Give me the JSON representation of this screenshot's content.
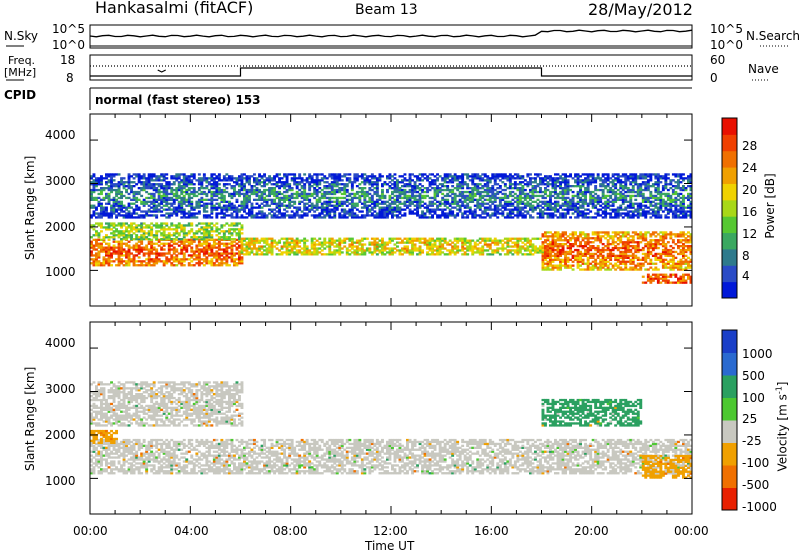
{
  "header": {
    "station": "Hankasalmi (fitACF)",
    "beam": "Beam 13",
    "date": "28/May/2012"
  },
  "panels": {
    "nsky": {
      "label": "N.Sky",
      "right_label": "N.Search",
      "ticks_left": [
        "10^5",
        "10^0"
      ],
      "ticks_right": [
        "10^5",
        "10^0"
      ]
    },
    "freq": {
      "label_1": "Freq.",
      "label_2": "[MHz]",
      "ticks_left": [
        "18",
        "8"
      ],
      "ticks_right": [
        "60",
        "0"
      ],
      "right_label": "Nave"
    },
    "cpid": {
      "label": "CPID",
      "text": "normal (fast stereo) 153"
    }
  },
  "colorbars": {
    "power": {
      "label": "Power [dB]",
      "ticks": [
        "28",
        "24",
        "20",
        "16",
        "12",
        "8",
        "4"
      ],
      "colors": [
        "#0018d8",
        "#2a4bc6",
        "#2e7a8c",
        "#3aa860",
        "#56c832",
        "#a8d818",
        "#f0d200",
        "#f0a000",
        "#f07000",
        "#f04000",
        "#e81000"
      ]
    },
    "velocity": {
      "label": "Velocity [m s",
      "label_sup": "-1",
      "label_end": "]",
      "ticks": [
        "1000",
        "500",
        "100",
        "25",
        "-25",
        "-100",
        "-500",
        "-1000"
      ],
      "colors": [
        "#1a3fc8",
        "#2a6ad0",
        "#2aa060",
        "#4cc830",
        "#c8c8c0",
        "#f0a000",
        "#f07000",
        "#e82000"
      ]
    }
  },
  "axes": {
    "ylabel": "Slant Range [km]",
    "yticks": [
      "4000",
      "3000",
      "2000",
      "1000"
    ],
    "xticks": [
      "00:00",
      "04:00",
      "08:00",
      "12:00",
      "16:00",
      "20:00",
      "00:00"
    ],
    "xlabel": "Time UT"
  },
  "chart_data": [
    {
      "type": "heatmap",
      "title": "Power",
      "xlabel": "",
      "ylabel": "Slant Range [km]",
      "x_range": [
        "00:00",
        "24:00"
      ],
      "ylim": [
        180,
        4600
      ],
      "colorbar_label": "Power [dB]",
      "colorbar_range": [
        0,
        32
      ],
      "bands": [
        {
          "t_start": 0,
          "t_end": 6,
          "range_low": 1100,
          "range_high": 1700,
          "power_db": 28
        },
        {
          "t_start": 0,
          "t_end": 6,
          "range_low": 1700,
          "range_high": 2100,
          "power_db": 16
        },
        {
          "t_start": 6,
          "t_end": 18,
          "range_low": 1350,
          "range_high": 1750,
          "power_db": 20
        },
        {
          "t_start": 18,
          "t_end": 24,
          "range_low": 1000,
          "range_high": 1900,
          "power_db": 28
        },
        {
          "t_start": 0,
          "t_end": 24,
          "range_low": 2200,
          "range_high": 3200,
          "power_db": 8
        },
        {
          "t_start": 22,
          "t_end": 24,
          "range_low": 700,
          "range_high": 900,
          "power_db": 28
        }
      ]
    },
    {
      "type": "heatmap",
      "title": "Velocity",
      "xlabel": "Time UT",
      "ylabel": "Slant Range [km]",
      "x_range": [
        "00:00",
        "24:00"
      ],
      "ylim": [
        180,
        4600
      ],
      "colorbar_label": "Velocity [m s-1]",
      "colorbar_range": [
        -1000,
        1000
      ],
      "bands": [
        {
          "t_start": 0,
          "t_end": 24,
          "range_low": 1100,
          "range_high": 1900,
          "velocity": 0
        },
        {
          "t_start": 0,
          "t_end": 6,
          "range_low": 2200,
          "range_high": 3200,
          "velocity": 0
        },
        {
          "t_start": 22,
          "t_end": 24,
          "range_low": 1000,
          "range_high": 1500,
          "velocity": -100
        },
        {
          "t_start": 0,
          "t_end": 1,
          "range_low": 1800,
          "range_high": 2100,
          "velocity": -100
        },
        {
          "t_start": 18,
          "t_end": 22,
          "range_low": 2200,
          "range_high": 2800,
          "velocity": 100
        }
      ]
    }
  ]
}
